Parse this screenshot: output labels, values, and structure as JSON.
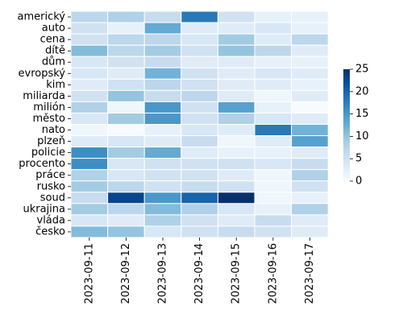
{
  "chart_data": {
    "type": "heatmap",
    "title": "",
    "xlabel": "",
    "ylabel": "",
    "x": [
      "2023-09-11",
      "2023-09-12",
      "2023-09-13",
      "2023-09-14",
      "2023-09-15",
      "2023-09-16",
      "2023-09-17"
    ],
    "y": [
      "americký",
      "auto",
      "cena",
      "dítě",
      "dům",
      "evropský",
      "kim",
      "miliarda",
      "milión",
      "město",
      "nato",
      "plzeň",
      "policie",
      "procento",
      "práce",
      "rusko",
      "soud",
      "ukrajina",
      "vláda",
      "česko"
    ],
    "values": [
      [
        7,
        8,
        6,
        18,
        5,
        2,
        2
      ],
      [
        5,
        2,
        13,
        3,
        3,
        4,
        2
      ],
      [
        5,
        7,
        7,
        4,
        9,
        3,
        7
      ],
      [
        11,
        7,
        9,
        5,
        10,
        7,
        3
      ],
      [
        4,
        5,
        6,
        3,
        3,
        2,
        2
      ],
      [
        4,
        3,
        12,
        5,
        3,
        4,
        3
      ],
      [
        3,
        5,
        7,
        5,
        3,
        3,
        2
      ],
      [
        5,
        10,
        6,
        7,
        3,
        1,
        3
      ],
      [
        8,
        1,
        15,
        5,
        14,
        2,
        0
      ],
      [
        4,
        9,
        15,
        5,
        8,
        4,
        3
      ],
      [
        1,
        0,
        2,
        4,
        3,
        18,
        12
      ],
      [
        3,
        4,
        3,
        6,
        1,
        3,
        14
      ],
      [
        16,
        9,
        13,
        3,
        2,
        2,
        3
      ],
      [
        16,
        4,
        5,
        5,
        5,
        4,
        6
      ],
      [
        8,
        4,
        5,
        5,
        3,
        1,
        8
      ],
      [
        9,
        7,
        5,
        6,
        5,
        1,
        5
      ],
      [
        6,
        23,
        15,
        20,
        25,
        1,
        2
      ],
      [
        9,
        7,
        11,
        8,
        4,
        2,
        8
      ],
      [
        4,
        3,
        8,
        5,
        3,
        6,
        3
      ],
      [
        11,
        10,
        4,
        5,
        6,
        5,
        3
      ]
    ],
    "colorbar": {
      "min": 0,
      "max": 25,
      "ticks": [
        0,
        5,
        10,
        15,
        20,
        25
      ],
      "colormap": "Blues"
    },
    "grid": false,
    "cell_border_color": "#ffffff"
  }
}
